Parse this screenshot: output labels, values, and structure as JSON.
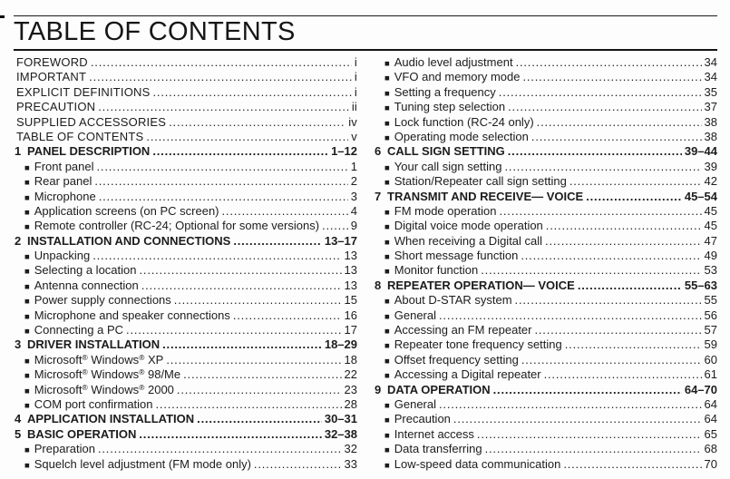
{
  "page": {
    "title": "TABLE OF CONTENTS"
  },
  "toc": {
    "left_column": [
      {
        "type": "front",
        "label": "FOREWORD",
        "page": "i"
      },
      {
        "type": "front",
        "label": "IMPORTANT",
        "page": "i"
      },
      {
        "type": "front",
        "label": "EXPLICIT DEFINITIONS",
        "page": "i"
      },
      {
        "type": "front",
        "label": "PRECAUTION",
        "page": "ii"
      },
      {
        "type": "front",
        "label": "SUPPLIED ACCESSORIES",
        "page": "iv"
      },
      {
        "type": "front",
        "label": "TABLE OF CONTENTS",
        "page": "v"
      },
      {
        "type": "chapter",
        "num": "1",
        "label": "PANEL DESCRIPTION",
        "page": "1–12"
      },
      {
        "type": "section",
        "label": "Front panel",
        "page": "1"
      },
      {
        "type": "section",
        "label": "Rear panel",
        "page": "2"
      },
      {
        "type": "section",
        "label": "Microphone",
        "page": "3"
      },
      {
        "type": "section",
        "label": "Application screens (on PC screen)",
        "page": "4"
      },
      {
        "type": "section",
        "label": "Remote controller (RC-24; Optional for some versions)",
        "page": "9"
      },
      {
        "type": "chapter",
        "num": "2",
        "label": "INSTALLATION AND CONNECTIONS",
        "page": "13–17"
      },
      {
        "type": "section",
        "label": "Unpacking",
        "page": "13"
      },
      {
        "type": "section",
        "label": "Selecting a location",
        "page": "13"
      },
      {
        "type": "section",
        "label": "Antenna connection",
        "page": "13"
      },
      {
        "type": "section",
        "label": "Power supply connections",
        "page": "15"
      },
      {
        "type": "section",
        "label": "Microphone and speaker connections",
        "page": "16"
      },
      {
        "type": "section",
        "label": "Connecting a PC",
        "page": "17"
      },
      {
        "type": "chapter",
        "num": "3",
        "label": "DRIVER INSTALLATION",
        "page": "18–29"
      },
      {
        "type": "section",
        "label": "Microsoft® Windows® XP",
        "page": "18"
      },
      {
        "type": "section",
        "label": "Microsoft® Windows® 98/Me",
        "page": "22"
      },
      {
        "type": "section",
        "label": "Microsoft® Windows® 2000",
        "page": "23"
      },
      {
        "type": "section",
        "label": "COM port confirmation",
        "page": "28"
      },
      {
        "type": "chapter",
        "num": "4",
        "label": "APPLICATION INSTALLATION",
        "page": "30–31"
      },
      {
        "type": "chapter",
        "num": "5",
        "label": "BASIC OPERATION",
        "page": "32–38"
      },
      {
        "type": "section",
        "label": "Preparation",
        "page": "32"
      },
      {
        "type": "section",
        "label": "Squelch level adjustment (FM mode only)",
        "page": "33"
      }
    ],
    "right_column": [
      {
        "type": "section",
        "label": "Audio level adjustment",
        "page": "34"
      },
      {
        "type": "section",
        "label": "VFO and memory mode",
        "page": "34"
      },
      {
        "type": "section",
        "label": "Setting a frequency",
        "page": "35"
      },
      {
        "type": "section",
        "label": "Tuning step selection",
        "page": "37"
      },
      {
        "type": "section",
        "label": "Lock function (RC-24 only)",
        "page": "38"
      },
      {
        "type": "section",
        "label": "Operating mode selection",
        "page": "38"
      },
      {
        "type": "chapter",
        "num": "6",
        "label": "CALL SIGN SETTING",
        "page": "39–44"
      },
      {
        "type": "section",
        "label": "Your call sign setting",
        "page": "39"
      },
      {
        "type": "section",
        "label": "Station/Repeater call sign setting",
        "page": "42"
      },
      {
        "type": "chapter",
        "num": "7",
        "label": "TRANSMIT AND RECEIVE— VOICE",
        "page": "45–54"
      },
      {
        "type": "section",
        "label": "FM mode operation",
        "page": "45"
      },
      {
        "type": "section",
        "label": "Digital voice mode operation",
        "page": "45"
      },
      {
        "type": "section",
        "label": "When receiving a Digital call",
        "page": "47"
      },
      {
        "type": "section",
        "label": "Short message function",
        "page": "49"
      },
      {
        "type": "section",
        "label": "Monitor function",
        "page": "53"
      },
      {
        "type": "chapter",
        "num": "8",
        "label": "REPEATER OPERATION— VOICE",
        "page": "55–63"
      },
      {
        "type": "section",
        "label": "About D-STAR system",
        "page": "55"
      },
      {
        "type": "section",
        "label": "General",
        "page": "56"
      },
      {
        "type": "section",
        "label": "Accessing an FM repeater",
        "page": "57"
      },
      {
        "type": "section",
        "label": "Repeater tone frequency setting",
        "page": "59"
      },
      {
        "type": "section",
        "label": "Offset frequency setting",
        "page": "60"
      },
      {
        "type": "section",
        "label": "Accessing a Digital repeater",
        "page": "61"
      },
      {
        "type": "chapter",
        "num": "9",
        "label": "DATA OPERATION",
        "page": "64–70"
      },
      {
        "type": "section",
        "label": "General",
        "page": "64"
      },
      {
        "type": "section",
        "label": "Precaution",
        "page": "64"
      },
      {
        "type": "section",
        "label": "Internet access",
        "page": "65"
      },
      {
        "type": "section",
        "label": "Data transferring",
        "page": "68"
      },
      {
        "type": "section",
        "label": "Low-speed data communication",
        "page": "70"
      }
    ]
  }
}
